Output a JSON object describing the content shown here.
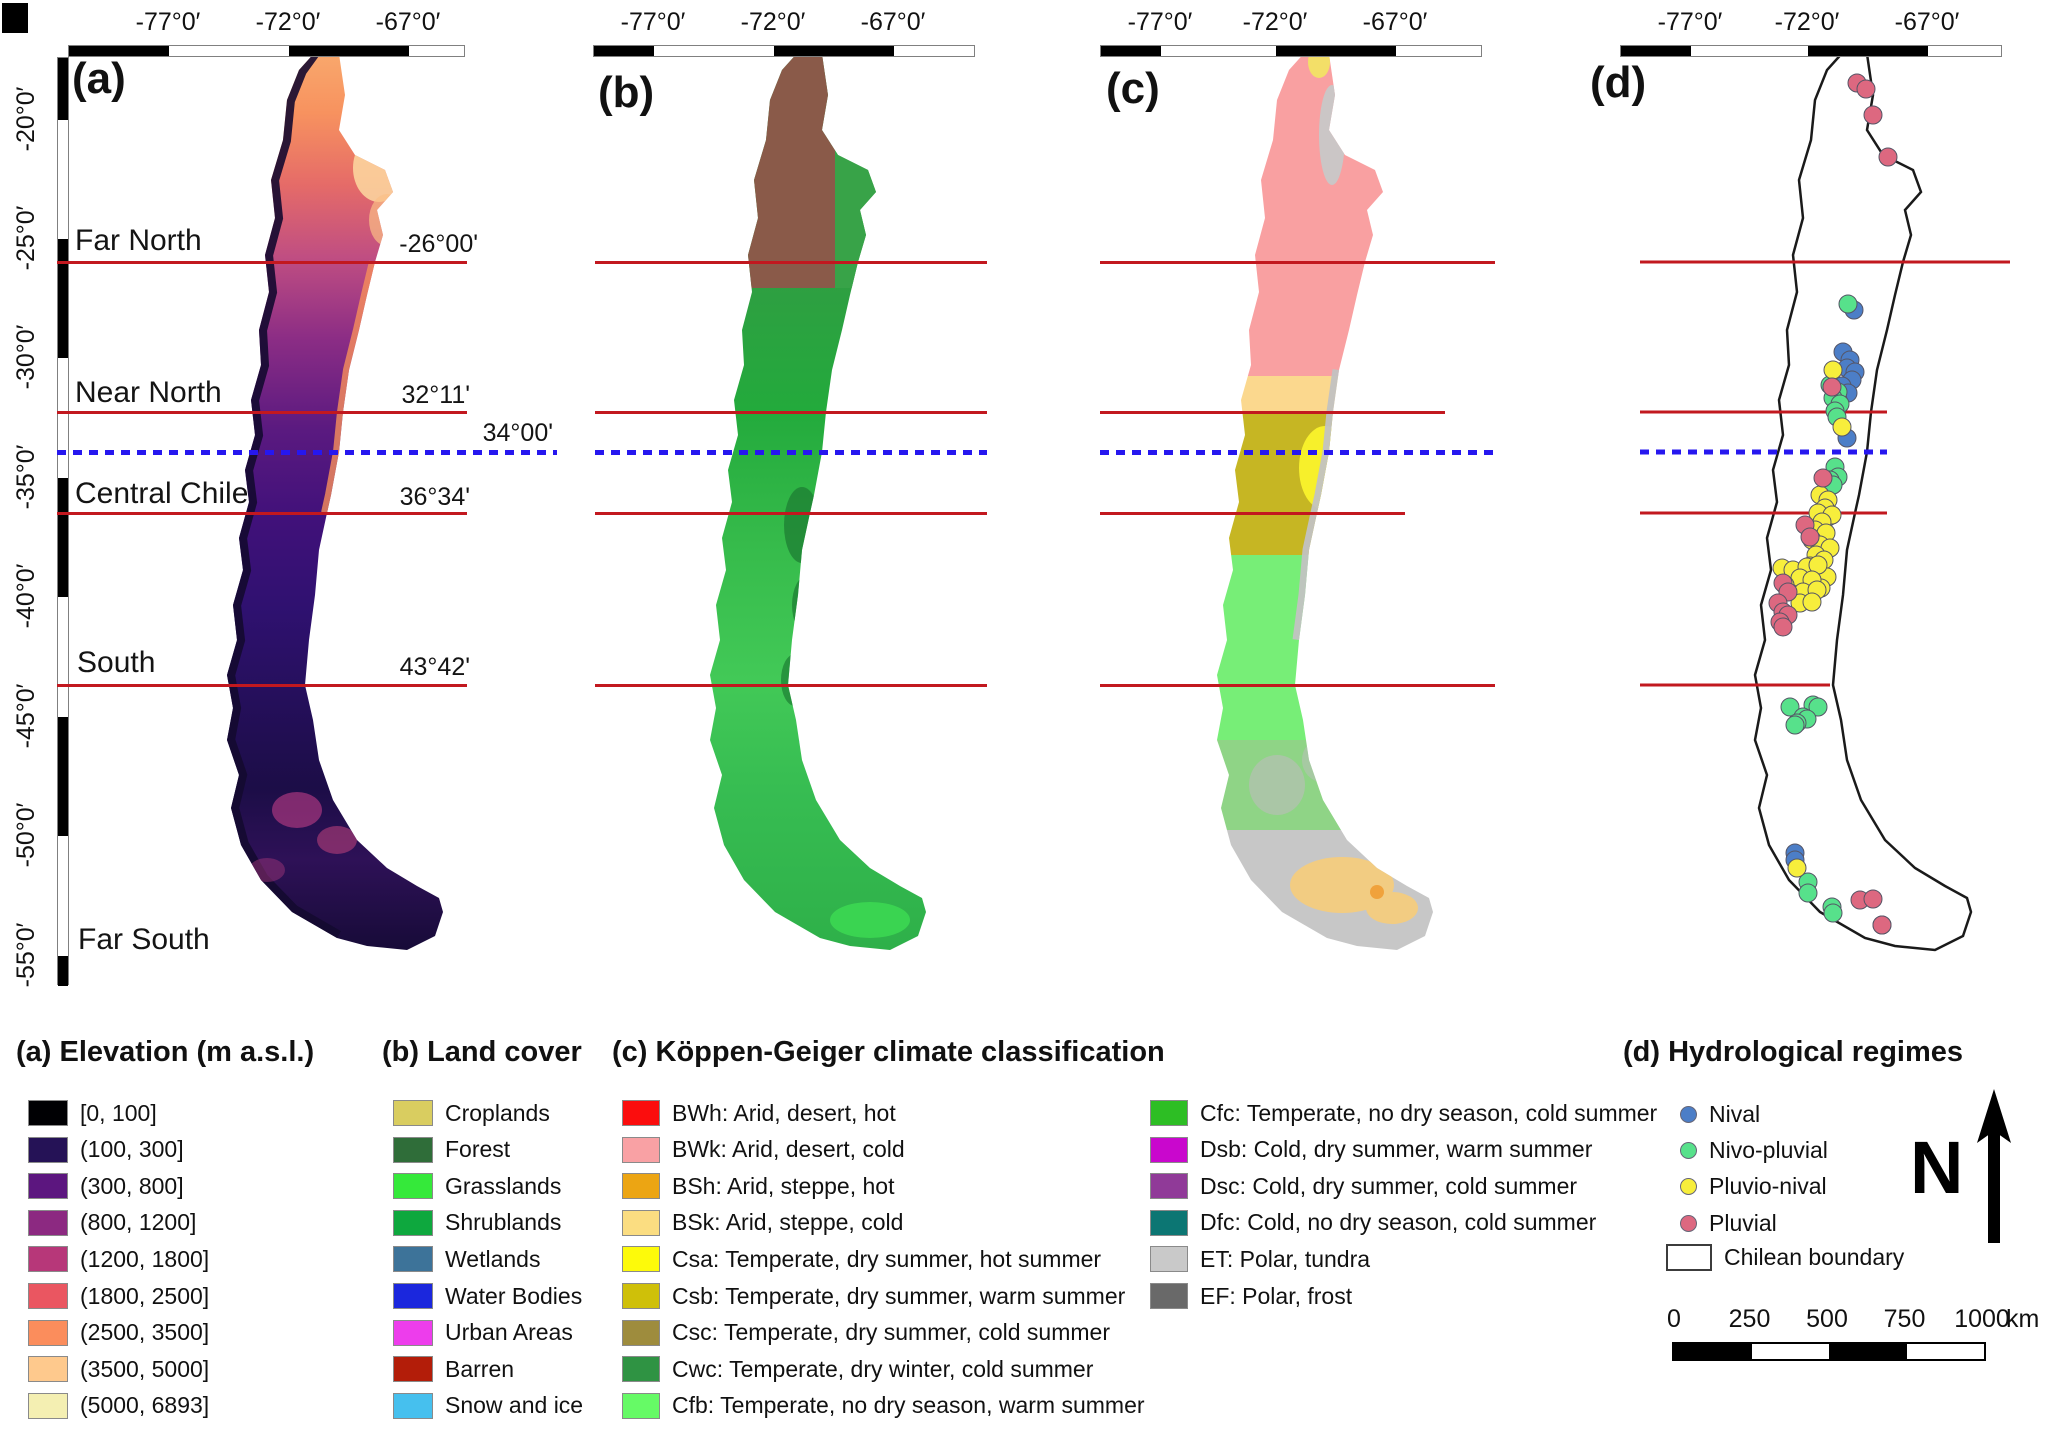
{
  "panel_letters": {
    "a": "(a)",
    "b": "(b)",
    "c": "(c)",
    "d": "(d)"
  },
  "lon_ticks": [
    "-77°0′",
    "-72°0′",
    "-67°0′"
  ],
  "lat_ticks": [
    "-20°0′",
    "-25°0′",
    "-30°0′",
    "-35°0′",
    "-40°0′",
    "-45°0′",
    "-50°0′",
    "-55°0′"
  ],
  "regions": [
    {
      "name": "Far North",
      "boundary_lat": "-26°00'"
    },
    {
      "name": "Near North",
      "boundary_lat": "32°11'"
    },
    {
      "name": "Central Chile",
      "boundary_lat": "36°34'"
    },
    {
      "name": "South",
      "boundary_lat": "43°42'"
    },
    {
      "name": "Far South",
      "boundary_lat": ""
    }
  ],
  "dotted_line_label": "34°00'",
  "legends": {
    "elevation": {
      "title": "(a) Elevation  (m a.s.l.)",
      "items": [
        {
          "label": "[0, 100]",
          "color": "#000003"
        },
        {
          "label": "(100, 300]",
          "color": "#251256"
        },
        {
          "label": "(300, 800]",
          "color": "#5c167f"
        },
        {
          "label": "(800, 1200]",
          "color": "#8c2981"
        },
        {
          "label": "(1200, 1800]",
          "color": "#b73779"
        },
        {
          "label": "(1800, 2500]",
          "color": "#ea5661"
        },
        {
          "label": "(2500, 3500]",
          "color": "#fb8d5c"
        },
        {
          "label": "(3500, 5000]",
          "color": "#fec98d"
        },
        {
          "label": "(5000, 6893]",
          "color": "#f4efb2"
        }
      ]
    },
    "landcover": {
      "title": "(b) Land cover",
      "items": [
        {
          "label": "Croplands",
          "color": "#d9cd60"
        },
        {
          "label": "Forest",
          "color": "#2f6d39"
        },
        {
          "label": "Grasslands",
          "color": "#35e93a"
        },
        {
          "label": "Shrublands",
          "color": "#0ea83e"
        },
        {
          "label": "Wetlands",
          "color": "#3d7399"
        },
        {
          "label": "Water Bodies",
          "color": "#1b27dd"
        },
        {
          "label": "Urban Areas",
          "color": "#ed3dec"
        },
        {
          "label": "Barren",
          "color": "#b31d09"
        },
        {
          "label": "Snow and ice",
          "color": "#46c0ee"
        }
      ]
    },
    "koppen": {
      "title": "(c) Köppen-Geiger climate classification",
      "col1": [
        {
          "label": "BWh: Arid, desert, hot",
          "color": "#fb0d0d"
        },
        {
          "label": "BWk: Arid, desert, cold",
          "color": "#f9a1a4"
        },
        {
          "label": "BSh: Arid, steppe, hot",
          "color": "#eca513"
        },
        {
          "label": "BSk: Arid, steppe, cold",
          "color": "#fbdd81"
        },
        {
          "label": "Csa: Temperate, dry summer, hot summer",
          "color": "#fdfa0a"
        },
        {
          "label": "Csb: Temperate, dry summer, warm summer",
          "color": "#cfc009"
        },
        {
          "label": "Csc: Temperate, dry summer, cold summer",
          "color": "#9e8c3d"
        },
        {
          "label": "Cwc: Temperate, dry winter, cold summer",
          "color": "#2f9343"
        },
        {
          "label": "Cfb: Temperate, no dry season, warm summer",
          "color": "#66fa66"
        }
      ],
      "col2": [
        {
          "label": "Cfc: Temperate, no dry season, cold summer",
          "color": "#2dbe24"
        },
        {
          "label": "Dsb: Cold, dry summer, warm summer",
          "color": "#c907cd"
        },
        {
          "label": "Dsc: Cold, dry summer, cold summer",
          "color": "#903a98"
        },
        {
          "label": "Dfc: Cold, no dry season, cold summer",
          "color": "#0c7673"
        },
        {
          "label": "ET: Polar, tundra",
          "color": "#c9c9c9"
        },
        {
          "label": "EF: Polar, frost",
          "color": "#696969"
        }
      ]
    },
    "hydro": {
      "title": "(d) Hydrological regimes",
      "items": [
        {
          "key": "nival",
          "label": "Nival",
          "color": "#4c7ec7"
        },
        {
          "key": "nivo",
          "label": "Nivo-pluvial",
          "color": "#57e18b"
        },
        {
          "key": "pluvio",
          "label": "Pluvio-nival",
          "color": "#f7ee3c"
        },
        {
          "key": "pluvial",
          "label": "Pluvial",
          "color": "#dd6880"
        }
      ],
      "boundary_label": "Chilean boundary"
    },
    "north_label": "N",
    "scalebar": {
      "ticks": [
        "0",
        "250",
        "500",
        "750",
        "1000"
      ],
      "unit": "km"
    }
  },
  "hydro_points": {
    "nival": [
      [
        239,
        270
      ],
      [
        228,
        312
      ],
      [
        235,
        320
      ],
      [
        232,
        328
      ],
      [
        240,
        332
      ],
      [
        237,
        340
      ],
      [
        227,
        346
      ],
      [
        233,
        353
      ],
      [
        223,
        360
      ],
      [
        232,
        398
      ],
      [
        180,
        813
      ],
      [
        180,
        820
      ]
    ],
    "nivo": [
      [
        233,
        264
      ],
      [
        215,
        345
      ],
      [
        223,
        352
      ],
      [
        218,
        358
      ],
      [
        225,
        364
      ],
      [
        220,
        371
      ],
      [
        222,
        377
      ],
      [
        220,
        427
      ],
      [
        223,
        437
      ],
      [
        215,
        440
      ],
      [
        218,
        445
      ],
      [
        213,
        477
      ],
      [
        175,
        667
      ],
      [
        198,
        665
      ],
      [
        203,
        667
      ],
      [
        188,
        677
      ],
      [
        192,
        679
      ],
      [
        182,
        683
      ],
      [
        180,
        685
      ],
      [
        193,
        842
      ],
      [
        193,
        853
      ],
      [
        217,
        867
      ],
      [
        218,
        873
      ],
      [
        267,
        885
      ]
    ],
    "pluvio": [
      [
        218,
        330
      ],
      [
        227,
        387
      ],
      [
        205,
        455
      ],
      [
        213,
        460
      ],
      [
        210,
        468
      ],
      [
        203,
        473
      ],
      [
        217,
        475
      ],
      [
        207,
        482
      ],
      [
        200,
        490
      ],
      [
        211,
        493
      ],
      [
        197,
        500
      ],
      [
        205,
        505
      ],
      [
        215,
        508
      ],
      [
        201,
        515
      ],
      [
        209,
        520
      ],
      [
        195,
        526
      ],
      [
        204,
        532
      ],
      [
        212,
        537
      ],
      [
        198,
        543
      ],
      [
        206,
        548
      ],
      [
        167,
        528
      ],
      [
        178,
        530
      ],
      [
        192,
        527
      ],
      [
        203,
        525
      ],
      [
        185,
        538
      ],
      [
        197,
        540
      ],
      [
        170,
        545
      ],
      [
        188,
        552
      ],
      [
        202,
        550
      ],
      [
        185,
        563
      ],
      [
        197,
        562
      ],
      [
        182,
        828
      ]
    ],
    "pluvial": [
      [
        242,
        43
      ],
      [
        251,
        49
      ],
      [
        258,
        75
      ],
      [
        273,
        117
      ],
      [
        217,
        347
      ],
      [
        208,
        438
      ],
      [
        190,
        485
      ],
      [
        195,
        497
      ],
      [
        168,
        543
      ],
      [
        173,
        552
      ],
      [
        163,
        563
      ],
      [
        168,
        572
      ],
      [
        173,
        575
      ],
      [
        165,
        582
      ],
      [
        168,
        587
      ],
      [
        245,
        860
      ],
      [
        258,
        859
      ],
      [
        267,
        885
      ]
    ]
  }
}
